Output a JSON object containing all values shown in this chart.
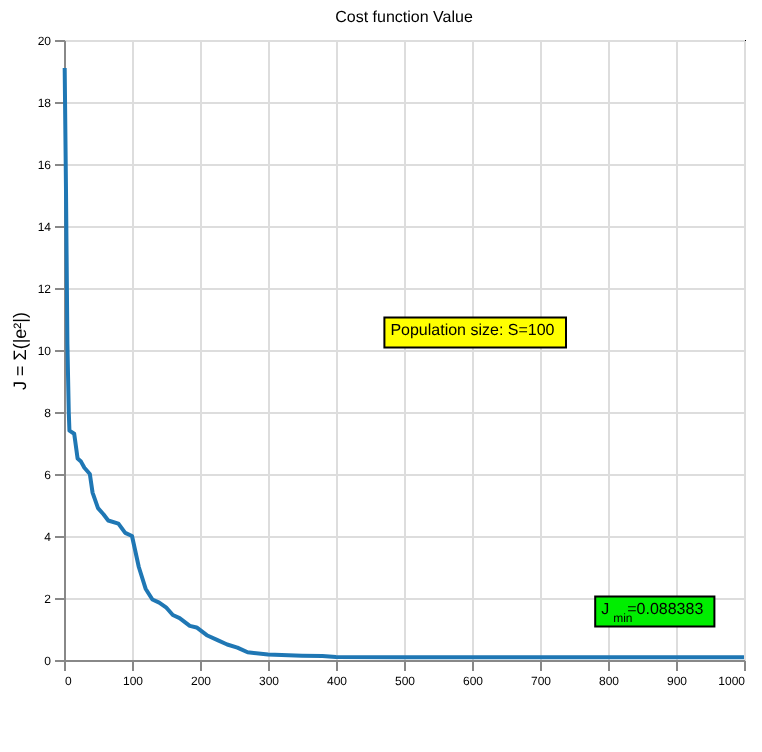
{
  "chart_data": {
    "type": "line",
    "title": "Cost function Value",
    "ylabel": "J = Σ(|e²|)",
    "x": [
      1,
      3,
      5,
      7,
      8,
      15,
      20,
      25,
      30,
      38,
      42,
      50,
      58,
      65,
      80,
      90,
      100,
      110,
      120,
      130,
      140,
      150,
      160,
      170,
      185,
      195,
      210,
      225,
      240,
      255,
      270,
      300,
      350,
      380,
      400,
      500,
      1000
    ],
    "series": [
      {
        "color": "#1f77b4",
        "values": [
          19.1,
          15,
          10.2,
          8,
          7.4,
          7.3,
          6.5,
          6.4,
          6.2,
          6.0,
          5.4,
          4.9,
          4.7,
          4.5,
          4.4,
          4.1,
          4.0,
          3.0,
          2.3,
          1.95,
          1.85,
          1.7,
          1.45,
          1.35,
          1.1,
          1.05,
          0.8,
          0.65,
          0.5,
          0.4,
          0.25,
          0.18,
          0.14,
          0.13,
          0.1,
          0.09,
          0.088
        ]
      }
    ],
    "xlim": [
      0,
      1000
    ],
    "xticks": [
      0,
      100,
      200,
      300,
      400,
      500,
      600,
      700,
      800,
      900,
      1000
    ],
    "ylim": [
      0,
      20
    ],
    "yticks": [
      0,
      2,
      4,
      6,
      8,
      10,
      12,
      14,
      16,
      18,
      20
    ],
    "grid": true,
    "annotations": [
      "Population size: S=100",
      "J$_{min}$ =0.088383"
    ]
  }
}
